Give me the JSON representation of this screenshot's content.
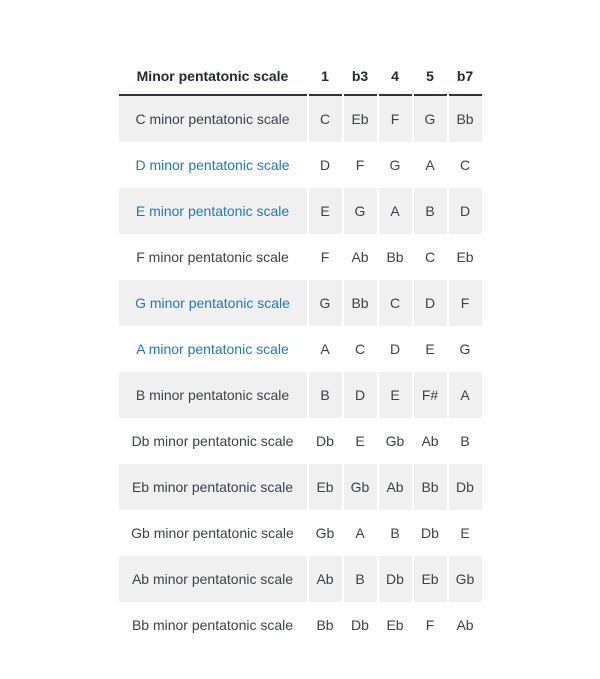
{
  "table": {
    "header": {
      "scale_col": "Minor pentatonic scale",
      "degree_cols": [
        "1",
        "b3",
        "4",
        "5",
        "b7"
      ]
    },
    "rows": [
      {
        "name": "C minor pentatonic scale",
        "link": false,
        "notes": [
          "C",
          "Eb",
          "F",
          "G",
          "Bb"
        ]
      },
      {
        "name": "D minor pentatonic scale",
        "link": true,
        "notes": [
          "D",
          "F",
          "G",
          "A",
          "C"
        ]
      },
      {
        "name": "E minor pentatonic scale",
        "link": true,
        "notes": [
          "E",
          "G",
          "A",
          "B",
          "D"
        ]
      },
      {
        "name": "F minor pentatonic scale",
        "link": false,
        "notes": [
          "F",
          "Ab",
          "Bb",
          "C",
          "Eb"
        ]
      },
      {
        "name": "G minor pentatonic scale",
        "link": true,
        "notes": [
          "G",
          "Bb",
          "C",
          "D",
          "F"
        ]
      },
      {
        "name": "A minor pentatonic scale",
        "link": true,
        "notes": [
          "A",
          "C",
          "D",
          "E",
          "G"
        ]
      },
      {
        "name": "B minor pentatonic scale",
        "link": false,
        "notes": [
          "B",
          "D",
          "E",
          "F#",
          "A"
        ]
      },
      {
        "name": "Db minor pentatonic scale",
        "link": false,
        "notes": [
          "Db",
          "E",
          "Gb",
          "Ab",
          "B"
        ]
      },
      {
        "name": "Eb minor pentatonic scale",
        "link": false,
        "notes": [
          "Eb",
          "Gb",
          "Ab",
          "Bb",
          "Db"
        ]
      },
      {
        "name": "Gb minor pentatonic scale",
        "link": false,
        "notes": [
          "Gb",
          "A",
          "B",
          "Db",
          "E"
        ]
      },
      {
        "name": "Ab minor pentatonic scale",
        "link": false,
        "notes": [
          "Ab",
          "B",
          "Db",
          "Eb",
          "Gb"
        ]
      },
      {
        "name": "Bb minor pentatonic scale",
        "link": false,
        "notes": [
          "Bb",
          "Db",
          "Eb",
          "F",
          "Ab"
        ]
      }
    ],
    "colors": {
      "background": "#ffffff",
      "stripe": "#f0f0f1",
      "header_border": "#2e333a",
      "text": "#3d4248",
      "header_text": "#26292e",
      "link": "#2279b5"
    }
  }
}
